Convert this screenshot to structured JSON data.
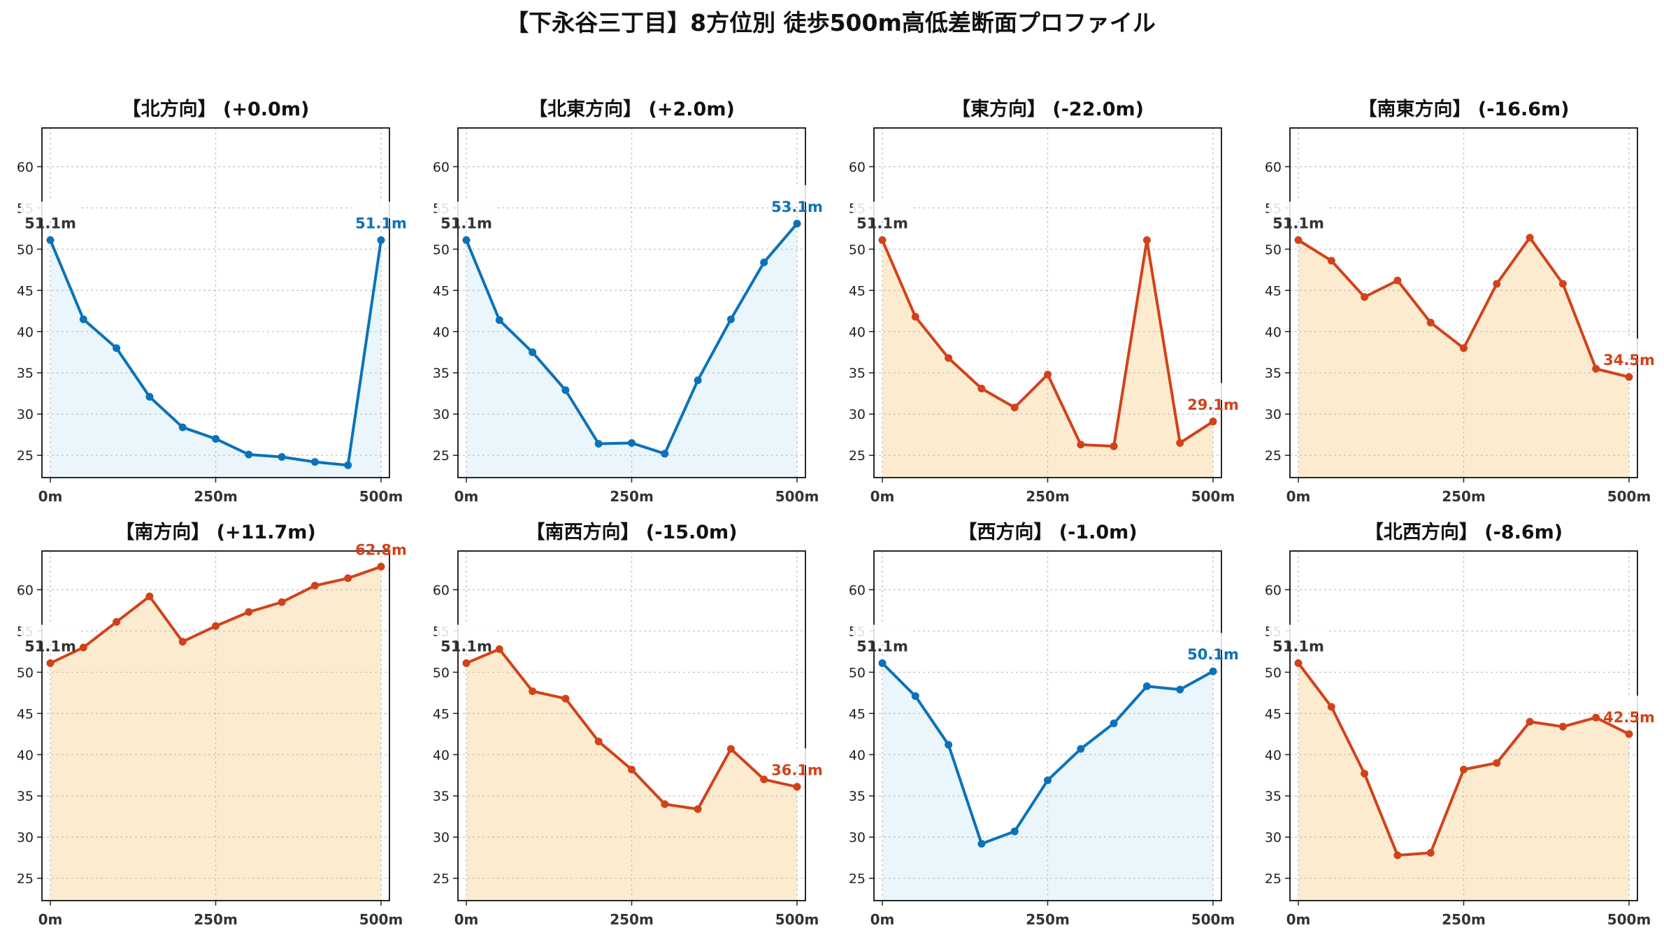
{
  "title": "【下永谷三丁目】8方位別 徒歩500m高低差断面プロファイル",
  "colors": {
    "down": "#d2421a",
    "down_fill": "#fdebd0",
    "up": "#0b72b9",
    "up_fill": "#eaf6fb",
    "start_label": "#333333"
  },
  "chart_data": [
    {
      "type": "area",
      "title": "【北方向】 (+0.0m)",
      "trend": "up",
      "x": [
        0,
        50,
        100,
        150,
        200,
        250,
        300,
        350,
        400,
        450,
        500
      ],
      "y": [
        51.1,
        41.5,
        38.0,
        32.1,
        28.4,
        27.0,
        25.1,
        24.8,
        24.2,
        23.8,
        51.1
      ],
      "start_label": "51.1m",
      "end_label": "51.1m",
      "xticks": [
        "0m",
        "250m",
        "500m"
      ],
      "ylim": [
        22.3,
        64.7
      ],
      "yticks": [
        25,
        30,
        35,
        40,
        45,
        50,
        55,
        60
      ],
      "grid": true
    },
    {
      "type": "area",
      "title": "【北東方向】 (+2.0m)",
      "trend": "up",
      "x": [
        0,
        50,
        100,
        150,
        200,
        250,
        300,
        350,
        400,
        450,
        500
      ],
      "y": [
        51.1,
        41.4,
        37.5,
        32.9,
        26.4,
        26.5,
        25.2,
        34.1,
        41.5,
        48.4,
        53.1
      ],
      "start_label": "51.1m",
      "end_label": "53.1m",
      "xticks": [
        "0m",
        "250m",
        "500m"
      ],
      "ylim": [
        22.3,
        64.7
      ],
      "yticks": [
        25,
        30,
        35,
        40,
        45,
        50,
        55,
        60
      ],
      "grid": true
    },
    {
      "type": "area",
      "title": "【東方向】 (-22.0m)",
      "trend": "down",
      "x": [
        0,
        50,
        100,
        150,
        200,
        250,
        300,
        350,
        400,
        450,
        500
      ],
      "y": [
        51.1,
        41.8,
        36.8,
        33.1,
        30.8,
        34.8,
        26.3,
        26.1,
        51.1,
        26.5,
        29.1
      ],
      "start_label": "51.1m",
      "end_label": "29.1m",
      "xticks": [
        "0m",
        "250m",
        "500m"
      ],
      "ylim": [
        22.3,
        64.7
      ],
      "yticks": [
        25,
        30,
        35,
        40,
        45,
        50,
        55,
        60
      ],
      "grid": true
    },
    {
      "type": "area",
      "title": "【南東方向】 (-16.6m)",
      "trend": "down",
      "x": [
        0,
        50,
        100,
        150,
        200,
        250,
        300,
        350,
        400,
        450,
        500
      ],
      "y": [
        51.1,
        48.6,
        44.2,
        46.2,
        41.1,
        38.0,
        45.8,
        51.4,
        45.8,
        35.5,
        34.5
      ],
      "start_label": "51.1m",
      "end_label": "34.5m",
      "xticks": [
        "0m",
        "250m",
        "500m"
      ],
      "ylim": [
        22.3,
        64.7
      ],
      "yticks": [
        25,
        30,
        35,
        40,
        45,
        50,
        55,
        60
      ],
      "grid": true
    },
    {
      "type": "area",
      "title": "【南方向】 (+11.7m)",
      "trend": "down",
      "x": [
        0,
        50,
        100,
        150,
        200,
        250,
        300,
        350,
        400,
        450,
        500
      ],
      "y": [
        51.1,
        53.0,
        56.1,
        59.2,
        53.7,
        55.6,
        57.3,
        58.5,
        60.5,
        61.4,
        62.8
      ],
      "start_label": "51.1m",
      "end_label": "62.8m",
      "xticks": [
        "0m",
        "250m",
        "500m"
      ],
      "ylim": [
        22.3,
        64.7
      ],
      "yticks": [
        25,
        30,
        35,
        40,
        45,
        50,
        55,
        60
      ],
      "grid": true
    },
    {
      "type": "area",
      "title": "【南西方向】 (-15.0m)",
      "trend": "down",
      "x": [
        0,
        50,
        100,
        150,
        200,
        250,
        300,
        350,
        400,
        450,
        500
      ],
      "y": [
        51.1,
        52.8,
        47.7,
        46.8,
        41.6,
        38.2,
        34.0,
        33.4,
        40.7,
        37.0,
        36.1
      ],
      "start_label": "51.1m",
      "end_label": "36.1m",
      "xticks": [
        "0m",
        "250m",
        "500m"
      ],
      "ylim": [
        22.3,
        64.7
      ],
      "yticks": [
        25,
        30,
        35,
        40,
        45,
        50,
        55,
        60
      ],
      "grid": true
    },
    {
      "type": "area",
      "title": "【西方向】 (-1.0m)",
      "trend": "up",
      "x": [
        0,
        50,
        100,
        150,
        200,
        250,
        300,
        350,
        400,
        450,
        500
      ],
      "y": [
        51.1,
        47.1,
        41.2,
        29.2,
        30.7,
        36.9,
        40.7,
        43.8,
        48.3,
        47.9,
        50.1
      ],
      "start_label": "51.1m",
      "end_label": "50.1m",
      "xticks": [
        "0m",
        "250m",
        "500m"
      ],
      "ylim": [
        22.3,
        64.7
      ],
      "yticks": [
        25,
        30,
        35,
        40,
        45,
        50,
        55,
        60
      ],
      "grid": true
    },
    {
      "type": "area",
      "title": "【北西方向】 (-8.6m)",
      "trend": "down",
      "x": [
        0,
        50,
        100,
        150,
        200,
        250,
        300,
        350,
        400,
        450,
        500
      ],
      "y": [
        51.1,
        45.8,
        37.7,
        27.8,
        28.1,
        38.2,
        39.0,
        44.0,
        43.4,
        44.5,
        42.5
      ],
      "start_label": "51.1m",
      "end_label": "42.5m",
      "xticks": [
        "0m",
        "250m",
        "500m"
      ],
      "ylim": [
        22.3,
        64.7
      ],
      "yticks": [
        25,
        30,
        35,
        40,
        45,
        50,
        55,
        60
      ],
      "grid": true
    }
  ]
}
